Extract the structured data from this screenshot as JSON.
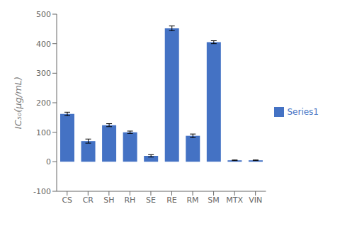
{
  "chart_data": {
    "type": "bar",
    "ylabel": "IC₅₀(μg/mL)",
    "categories": [
      "CS",
      "CR",
      "SH",
      "RH",
      "SE",
      "RE",
      "RM",
      "SM",
      "MTX",
      "VIN"
    ],
    "series": [
      {
        "name": "Series1",
        "color": "#4472C4",
        "values": [
          162,
          70,
          124,
          100,
          20,
          452,
          88,
          405,
          5,
          5
        ],
        "errors": [
          6,
          7,
          5,
          4,
          4,
          8,
          6,
          5,
          1,
          1
        ]
      }
    ],
    "ylim": [
      -100,
      500
    ],
    "yticks": [
      -100,
      0,
      100,
      200,
      300,
      400,
      500
    ],
    "grid": false,
    "legend": "right"
  }
}
